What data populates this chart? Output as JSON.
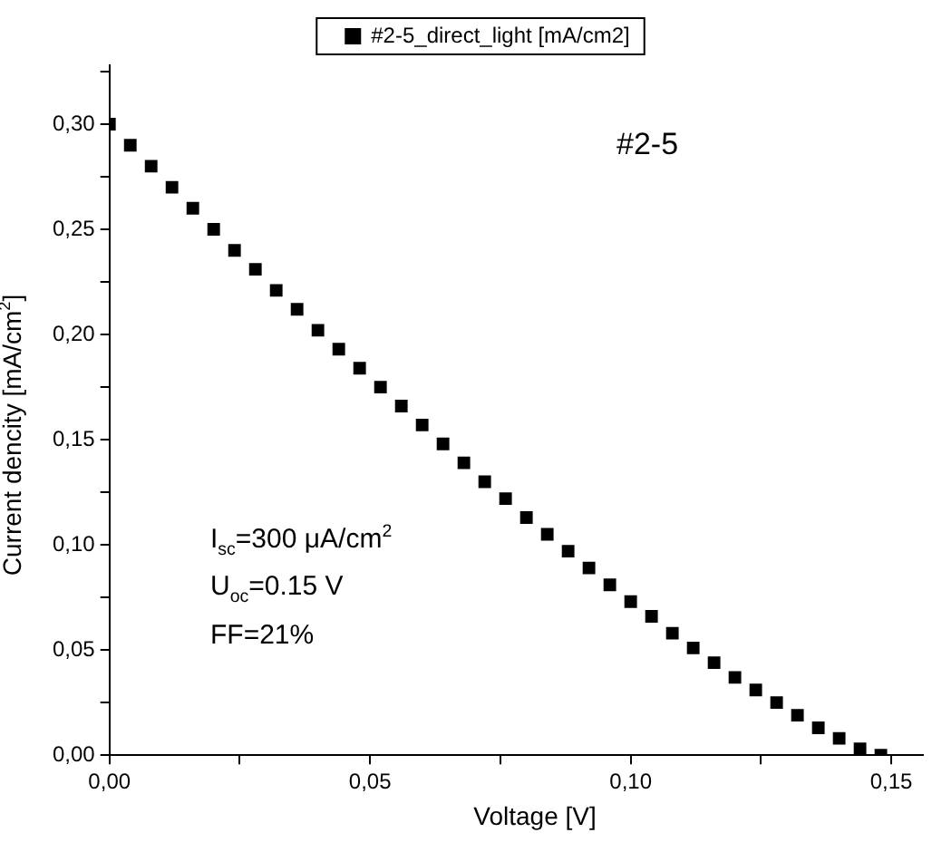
{
  "chart_data": {
    "type": "scatter",
    "xlabel": "Voltage [V]",
    "ylabel": "Current dencity [mA/cm$^{2}$]",
    "x": [
      0,
      0.004,
      0.008,
      0.012,
      0.016,
      0.02,
      0.024,
      0.028,
      0.032,
      0.036,
      0.04,
      0.044,
      0.048,
      0.052,
      0.056,
      0.06,
      0.064,
      0.068,
      0.072,
      0.076,
      0.08,
      0.084,
      0.088,
      0.092,
      0.096,
      0.1,
      0.104,
      0.108,
      0.112,
      0.116,
      0.12,
      0.124,
      0.128,
      0.132,
      0.136,
      0.14,
      0.144,
      0.148
    ],
    "series": [
      {
        "name": "#2-5_direct_light [mA/cm2]",
        "color": "#000000",
        "values": [
          0.3,
          0.29,
          0.28,
          0.27,
          0.26,
          0.25,
          0.24,
          0.231,
          0.221,
          0.212,
          0.202,
          0.193,
          0.184,
          0.175,
          0.166,
          0.157,
          0.148,
          0.139,
          0.13,
          0.122,
          0.113,
          0.105,
          0.097,
          0.089,
          0.081,
          0.073,
          0.066,
          0.058,
          0.051,
          0.044,
          0.037,
          0.031,
          0.025,
          0.019,
          0.013,
          0.008,
          0.003,
          0
        ]
      }
    ],
    "xlim": [
      0,
      0.156
    ],
    "ylim": [
      0,
      0.328
    ],
    "xticks": [
      {
        "value": 0,
        "label": "0,00"
      },
      {
        "value": 0.025,
        "label": null
      },
      {
        "value": 0.05,
        "label": "0,05"
      },
      {
        "value": 0.075,
        "label": null
      },
      {
        "value": 0.1,
        "label": "0,10"
      },
      {
        "value": 0.125,
        "label": null
      },
      {
        "value": 0.15,
        "label": "0,15"
      }
    ],
    "yticks": [
      {
        "value": 0,
        "label": "0,00"
      },
      {
        "value": 0.025,
        "label": null
      },
      {
        "value": 0.05,
        "label": "0,05"
      },
      {
        "value": 0.075,
        "label": null
      },
      {
        "value": 0.1,
        "label": "0,10"
      },
      {
        "value": 0.125,
        "label": null
      },
      {
        "value": 0.15,
        "label": "0,15"
      },
      {
        "value": 0.175,
        "label": null
      },
      {
        "value": 0.2,
        "label": "0,20"
      },
      {
        "value": 0.225,
        "label": null
      },
      {
        "value": 0.25,
        "label": "0,25"
      },
      {
        "value": 0.275,
        "label": null
      },
      {
        "value": 0.3,
        "label": "0,30"
      },
      {
        "value": 0.325,
        "label": null
      }
    ],
    "annotations": [
      "#2-5",
      "I$_{sc}$=300 μA/cm$^{2}$",
      "U$_{oc}$=0.15 V",
      "FF=21%"
    ],
    "legend": "top",
    "marker": "square",
    "grid": false
  }
}
